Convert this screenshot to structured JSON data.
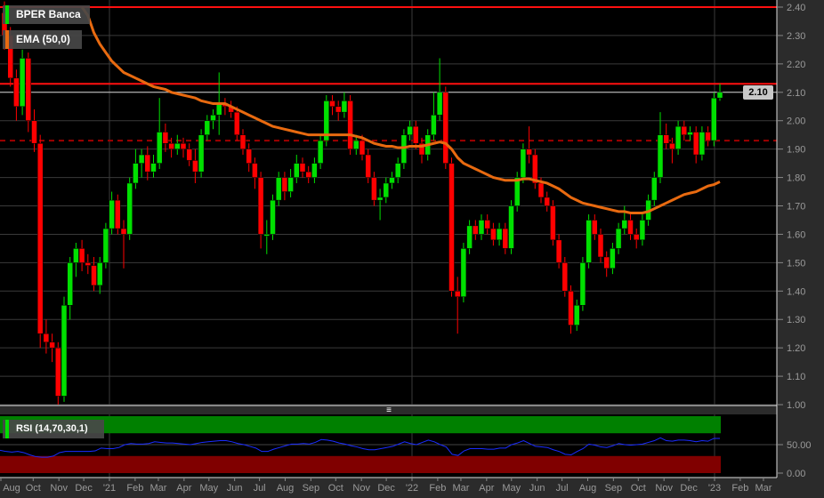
{
  "instrument": {
    "name": "BPER Banca"
  },
  "indicators": {
    "ema_label": "EMA (50,0)",
    "rsi_label": "RSI (14,70,30,1)"
  },
  "last_price_label": "2.10",
  "colors": {
    "up": "#00e000",
    "down": "#ff0000",
    "ema": "#e86a10",
    "rsi_line": "#1a2cff",
    "overbought_zone": "#008000",
    "oversold_zone": "#800000",
    "level_line": "#ff1010",
    "dashed_level": "#a00000"
  },
  "chart_data": [
    {
      "type": "candlestick",
      "title": "BPER Banca",
      "ylim": [
        1.0,
        2.4
      ],
      "y_ticks": [
        "1.00",
        "1.10",
        "1.20",
        "1.30",
        "1.40",
        "1.50",
        "1.60",
        "1.70",
        "1.80",
        "1.90",
        "2.00",
        "2.10",
        "2.20",
        "2.30",
        "2.40"
      ],
      "x_ticks": [
        {
          "label": "Aug",
          "date": "2020-08-01"
        },
        {
          "label": "Oct",
          "date": "2020-10-01"
        },
        {
          "label": "Nov",
          "date": "2020-11-01"
        },
        {
          "label": "Dec",
          "date": "2020-12-01"
        },
        {
          "label": "'21",
          "date": "2021-01-01"
        },
        {
          "label": "Feb",
          "date": "2021-02-01"
        },
        {
          "label": "Mar",
          "date": "2021-03-01"
        },
        {
          "label": "Apr",
          "date": "2021-04-01"
        },
        {
          "label": "May",
          "date": "2021-05-01"
        },
        {
          "label": "Jun",
          "date": "2021-06-01"
        },
        {
          "label": "Jul",
          "date": "2021-07-01"
        },
        {
          "label": "Aug",
          "date": "2021-08-01"
        },
        {
          "label": "Sep",
          "date": "2021-09-01"
        },
        {
          "label": "Oct",
          "date": "2021-10-01"
        },
        {
          "label": "Nov",
          "date": "2021-11-01"
        },
        {
          "label": "Dec",
          "date": "2021-12-01"
        },
        {
          "label": "'22",
          "date": "2022-01-01"
        },
        {
          "label": "Feb",
          "date": "2022-02-01"
        },
        {
          "label": "Mar",
          "date": "2022-03-01"
        },
        {
          "label": "Apr",
          "date": "2022-04-01"
        },
        {
          "label": "May",
          "date": "2022-05-01"
        },
        {
          "label": "Jun",
          "date": "2022-06-01"
        },
        {
          "label": "Jul",
          "date": "2022-07-01"
        },
        {
          "label": "Aug",
          "date": "2022-08-01"
        },
        {
          "label": "Sep",
          "date": "2022-09-01"
        },
        {
          "label": "Oct",
          "date": "2022-10-01"
        },
        {
          "label": "Nov",
          "date": "2022-11-01"
        },
        {
          "label": "Dec",
          "date": "2022-12-01"
        },
        {
          "label": "'23",
          "date": "2023-01-01"
        },
        {
          "label": "Feb",
          "date": "2023-02-01"
        },
        {
          "label": "Mar",
          "date": "2023-03-01"
        }
      ],
      "year_gridlines": [
        "2021-01-01",
        "2022-01-01",
        "2023-01-01"
      ],
      "grid": true,
      "horizontal_levels": {
        "solid_red": [
          2.4,
          2.13
        ],
        "last_price": 2.1,
        "dashed": 1.93
      },
      "candles_ohlc": [
        [
          2.38,
          2.42,
          2.25,
          2.3
        ],
        [
          2.3,
          2.33,
          2.12,
          2.15
        ],
        [
          2.15,
          2.18,
          2.0,
          2.05
        ],
        [
          2.05,
          2.25,
          2.02,
          2.22
        ],
        [
          2.22,
          2.24,
          1.96,
          2.0
        ],
        [
          2.0,
          2.04,
          1.89,
          1.92
        ],
        [
          1.92,
          1.95,
          1.2,
          1.25
        ],
        [
          1.25,
          1.3,
          1.18,
          1.22
        ],
        [
          1.22,
          1.25,
          1.15,
          1.2
        ],
        [
          1.2,
          1.22,
          1.0,
          1.03
        ],
        [
          1.03,
          1.38,
          1.01,
          1.35
        ],
        [
          1.35,
          1.52,
          1.3,
          1.5
        ],
        [
          1.5,
          1.57,
          1.45,
          1.55
        ],
        [
          1.55,
          1.58,
          1.47,
          1.5
        ],
        [
          1.5,
          1.53,
          1.46,
          1.49
        ],
        [
          1.49,
          1.52,
          1.4,
          1.42
        ],
        [
          1.42,
          1.52,
          1.39,
          1.5
        ],
        [
          1.5,
          1.64,
          1.48,
          1.62
        ],
        [
          1.62,
          1.75,
          1.6,
          1.72
        ],
        [
          1.72,
          1.74,
          1.6,
          1.62
        ],
        [
          1.62,
          1.65,
          1.48,
          1.6
        ],
        [
          1.6,
          1.8,
          1.58,
          1.78
        ],
        [
          1.78,
          1.9,
          1.76,
          1.85
        ],
        [
          1.85,
          1.9,
          1.8,
          1.88
        ],
        [
          1.88,
          1.91,
          1.79,
          1.82
        ],
        [
          1.82,
          1.88,
          1.8,
          1.85
        ],
        [
          1.85,
          2.08,
          1.83,
          1.96
        ],
        [
          1.96,
          1.99,
          1.89,
          1.92
        ],
        [
          1.92,
          1.94,
          1.87,
          1.9
        ],
        [
          1.9,
          1.95,
          1.88,
          1.92
        ],
        [
          1.92,
          1.94,
          1.87,
          1.9
        ],
        [
          1.9,
          1.92,
          1.84,
          1.86
        ],
        [
          1.86,
          1.9,
          1.78,
          1.82
        ],
        [
          1.82,
          1.97,
          1.8,
          1.95
        ],
        [
          1.95,
          2.02,
          1.93,
          2.0
        ],
        [
          2.0,
          2.04,
          1.97,
          2.02
        ],
        [
          2.02,
          2.17,
          1.95,
          2.06
        ],
        [
          2.06,
          2.08,
          2.02,
          2.05
        ],
        [
          2.05,
          2.07,
          2.01,
          2.03
        ],
        [
          2.03,
          2.05,
          1.93,
          1.95
        ],
        [
          1.95,
          1.97,
          1.88,
          1.9
        ],
        [
          1.9,
          1.92,
          1.82,
          1.85
        ],
        [
          1.85,
          1.87,
          1.76,
          1.8
        ],
        [
          1.8,
          1.82,
          1.55,
          1.6
        ],
        [
          1.6,
          1.65,
          1.53,
          1.6
        ],
        [
          1.6,
          1.74,
          1.58,
          1.72
        ],
        [
          1.72,
          1.82,
          1.7,
          1.8
        ],
        [
          1.8,
          1.82,
          1.72,
          1.75
        ],
        [
          1.75,
          1.83,
          1.73,
          1.8
        ],
        [
          1.8,
          1.88,
          1.78,
          1.85
        ],
        [
          1.85,
          1.87,
          1.8,
          1.82
        ],
        [
          1.82,
          1.84,
          1.78,
          1.8
        ],
        [
          1.8,
          1.87,
          1.78,
          1.85
        ],
        [
          1.85,
          1.95,
          1.83,
          1.93
        ],
        [
          1.93,
          2.09,
          1.91,
          2.07
        ],
        [
          2.07,
          2.09,
          2.02,
          2.05
        ],
        [
          2.05,
          2.07,
          2.0,
          2.03
        ],
        [
          2.03,
          2.1,
          2.01,
          2.07
        ],
        [
          2.07,
          2.09,
          1.88,
          1.9
        ],
        [
          1.9,
          1.95,
          1.88,
          1.93
        ],
        [
          1.93,
          1.95,
          1.86,
          1.88
        ],
        [
          1.88,
          1.9,
          1.78,
          1.8
        ],
        [
          1.8,
          1.82,
          1.7,
          1.72
        ],
        [
          1.72,
          1.76,
          1.65,
          1.73
        ],
        [
          1.73,
          1.8,
          1.71,
          1.78
        ],
        [
          1.78,
          1.82,
          1.76,
          1.8
        ],
        [
          1.8,
          1.87,
          1.78,
          1.85
        ],
        [
          1.85,
          1.97,
          1.83,
          1.95
        ],
        [
          1.95,
          2.0,
          1.93,
          1.98
        ],
        [
          1.98,
          2.0,
          1.9,
          1.92
        ],
        [
          1.92,
          1.94,
          1.85,
          1.88
        ],
        [
          1.88,
          1.97,
          1.86,
          1.95
        ],
        [
          1.95,
          2.1,
          1.93,
          2.02
        ],
        [
          2.02,
          2.22,
          2.0,
          2.1
        ],
        [
          2.1,
          2.12,
          1.83,
          1.85
        ],
        [
          1.85,
          1.87,
          1.38,
          1.4
        ],
        [
          1.4,
          1.45,
          1.25,
          1.38
        ],
        [
          1.38,
          1.57,
          1.36,
          1.55
        ],
        [
          1.55,
          1.65,
          1.53,
          1.63
        ],
        [
          1.63,
          1.65,
          1.58,
          1.6
        ],
        [
          1.6,
          1.67,
          1.58,
          1.65
        ],
        [
          1.65,
          1.67,
          1.6,
          1.62
        ],
        [
          1.62,
          1.64,
          1.56,
          1.58
        ],
        [
          1.58,
          1.64,
          1.56,
          1.62
        ],
        [
          1.62,
          1.64,
          1.53,
          1.55
        ],
        [
          1.55,
          1.72,
          1.53,
          1.7
        ],
        [
          1.7,
          1.82,
          1.68,
          1.8
        ],
        [
          1.8,
          1.92,
          1.78,
          1.9
        ],
        [
          1.9,
          1.98,
          1.85,
          1.88
        ],
        [
          1.88,
          1.9,
          1.76,
          1.78
        ],
        [
          1.78,
          1.8,
          1.71,
          1.73
        ],
        [
          1.73,
          1.75,
          1.68,
          1.7
        ],
        [
          1.7,
          1.72,
          1.56,
          1.58
        ],
        [
          1.58,
          1.6,
          1.48,
          1.5
        ],
        [
          1.5,
          1.52,
          1.38,
          1.4
        ],
        [
          1.4,
          1.42,
          1.25,
          1.28
        ],
        [
          1.28,
          1.37,
          1.26,
          1.35
        ],
        [
          1.35,
          1.52,
          1.33,
          1.5
        ],
        [
          1.5,
          1.67,
          1.48,
          1.65
        ],
        [
          1.65,
          1.67,
          1.58,
          1.6
        ],
        [
          1.6,
          1.62,
          1.5,
          1.52
        ],
        [
          1.52,
          1.54,
          1.45,
          1.48
        ],
        [
          1.48,
          1.57,
          1.46,
          1.55
        ],
        [
          1.55,
          1.64,
          1.53,
          1.62
        ],
        [
          1.62,
          1.7,
          1.6,
          1.65
        ],
        [
          1.65,
          1.67,
          1.58,
          1.6
        ],
        [
          1.6,
          1.62,
          1.55,
          1.58
        ],
        [
          1.58,
          1.67,
          1.56,
          1.65
        ],
        [
          1.65,
          1.74,
          1.63,
          1.72
        ],
        [
          1.72,
          1.82,
          1.7,
          1.8
        ],
        [
          1.8,
          2.03,
          1.78,
          1.95
        ],
        [
          1.95,
          1.99,
          1.9,
          1.92
        ],
        [
          1.92,
          1.94,
          1.85,
          1.9
        ],
        [
          1.9,
          2.0,
          1.88,
          1.98
        ],
        [
          1.98,
          2.0,
          1.93,
          1.95
        ],
        [
          1.95,
          1.98,
          1.93,
          1.96
        ],
        [
          1.96,
          1.98,
          1.85,
          1.88
        ],
        [
          1.88,
          1.98,
          1.86,
          1.96
        ],
        [
          1.96,
          1.98,
          1.91,
          1.93
        ],
        [
          1.93,
          2.1,
          1.91,
          2.08
        ],
        [
          2.08,
          2.13,
          2.07,
          2.1
        ]
      ],
      "ema_50": [
        null,
        null,
        null,
        null,
        null,
        null,
        null,
        null,
        null,
        null,
        null,
        null,
        null,
        2.4,
        2.37,
        2.31,
        2.27,
        2.24,
        2.21,
        2.19,
        2.17,
        2.16,
        2.15,
        2.14,
        2.13,
        2.12,
        2.115,
        2.11,
        2.1,
        2.095,
        2.09,
        2.085,
        2.08,
        2.07,
        2.065,
        2.06,
        2.06,
        2.06,
        2.05,
        2.04,
        2.03,
        2.02,
        2.01,
        2.0,
        1.99,
        1.98,
        1.975,
        1.97,
        1.965,
        1.96,
        1.955,
        1.95,
        1.95,
        1.95,
        1.95,
        1.95,
        1.95,
        1.95,
        1.95,
        1.945,
        1.94,
        1.93,
        1.92,
        1.915,
        1.91,
        1.91,
        1.905,
        1.905,
        1.91,
        1.91,
        1.91,
        1.915,
        1.92,
        1.925,
        1.92,
        1.9,
        1.87,
        1.85,
        1.84,
        1.83,
        1.82,
        1.81,
        1.8,
        1.795,
        1.79,
        1.79,
        1.79,
        1.795,
        1.795,
        1.79,
        1.785,
        1.78,
        1.77,
        1.76,
        1.745,
        1.73,
        1.72,
        1.71,
        1.705,
        1.7,
        1.695,
        1.69,
        1.685,
        1.68,
        1.68,
        1.675,
        1.675,
        1.675,
        1.68,
        1.69,
        1.7,
        1.71,
        1.72,
        1.73,
        1.74,
        1.745,
        1.75,
        1.76,
        1.77,
        1.775,
        1.785
      ]
    },
    {
      "type": "line",
      "title": "RSI (14,70,30,1)",
      "ylim": [
        0,
        100
      ],
      "y_ticks": [
        "0.00",
        "50.00"
      ],
      "overbought": 70,
      "oversold": 30,
      "values": [
        40,
        38,
        37,
        38,
        36,
        32,
        29,
        28,
        28,
        30,
        36,
        38,
        38,
        38,
        38,
        38,
        39,
        44,
        43,
        43,
        45,
        50,
        52,
        51,
        51,
        52,
        55,
        54,
        53,
        53,
        52,
        51,
        50,
        52,
        54,
        55,
        56,
        57,
        57,
        55,
        52,
        50,
        47,
        44,
        38,
        38,
        42,
        45,
        48,
        51,
        51,
        52,
        51,
        54,
        59,
        58,
        56,
        53,
        51,
        48,
        46,
        43,
        41,
        41,
        43,
        45,
        47,
        51,
        55,
        52,
        50,
        54,
        58,
        55,
        50,
        46,
        33,
        31,
        39,
        43,
        43,
        43,
        42,
        42,
        44,
        44,
        50,
        53,
        57,
        52,
        47,
        46,
        45,
        41,
        38,
        33,
        32,
        38,
        43,
        51,
        49,
        46,
        45,
        48,
        52,
        50,
        49,
        50,
        51,
        54,
        57,
        62,
        57,
        56,
        58,
        58,
        57,
        55,
        57,
        56,
        61,
        61
      ]
    }
  ]
}
